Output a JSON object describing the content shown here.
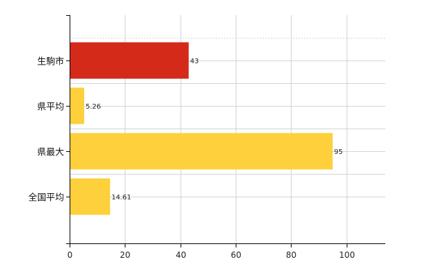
{
  "chart_data": {
    "type": "bar",
    "orientation": "horizontal",
    "categories": [
      "生駒市",
      "県平均",
      "県最大",
      "全国平均"
    ],
    "values": [
      43,
      5.26,
      95,
      14.61
    ],
    "value_labels": [
      "43",
      "5.26",
      "95",
      "14.61"
    ],
    "colors": [
      "#d42a19",
      "#fdd03c",
      "#fdd03c",
      "#fdd03c"
    ],
    "xlim": [
      0,
      114
    ],
    "xticks": [
      0,
      20,
      40,
      60,
      80,
      100
    ],
    "xtick_labels": [
      "0",
      "20",
      "40",
      "60",
      "80",
      "100"
    ],
    "grid": true,
    "legend": "none"
  }
}
